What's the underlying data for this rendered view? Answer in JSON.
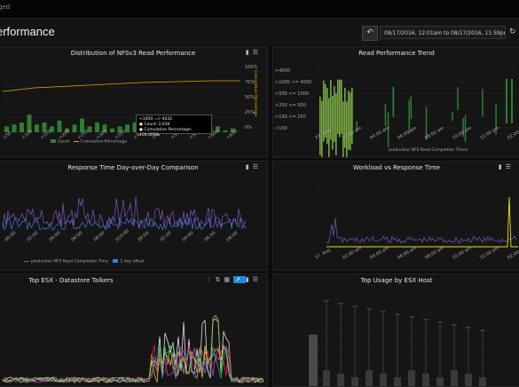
{
  "header": {
    "crumb": "ged",
    "title": "erformance",
    "back_icon": "undo-icon",
    "range": "08/17/2016, 12:01am to 08/17/2016, 11:59pm",
    "refresh_icon": "refresh-icon"
  },
  "panels": {
    "nfs": {
      "title": "Distribution of NFSv3 Read Performance",
      "tooltip": [
        "<1000 => 4032",
        "● Count: 2,634",
        "● Cumulative Percentage: 100.000%"
      ],
      "legend": [
        "Count",
        "Cumulative Percentage"
      ],
      "y_right": "Cumulative Percentage",
      "y_ticks": [
        "100%",
        "75%",
        "50%",
        "25%",
        "0%"
      ]
    },
    "trend": {
      "title": "Read Performance Trend",
      "y_ticks": [
        ">4000",
        ">1000 <= 4000",
        ">500 <= 1000",
        ">250 <= 500",
        ">150 <= 250",
        "<150"
      ],
      "x_ticks": [
        "17. Aug",
        "02:00 am",
        "04:00 am",
        "06:00 am",
        "08:00 am",
        "10:00 am",
        "12:00 pm",
        "02:00 pm"
      ],
      "legend": "production NFS Read Completion Times"
    },
    "rt": {
      "title": "Response Time Day-over-Day Comparison",
      "legend": [
        "production NFS Read Completion Time",
        "1 day offset"
      ]
    },
    "workload": {
      "title": "Workload vs Response Time",
      "x_ticks": [
        "17. Aug",
        "02:00 am",
        "04:00 am",
        "06:00 am",
        "08:00 am",
        "10:00 am",
        "12:00 pm",
        "02:00 pm"
      ]
    },
    "esx": {
      "title": "Top ESX - Datastore Talkers"
    },
    "usage": {
      "title": "Top Usage by ESX Host"
    }
  },
  "colors": {
    "accent": "#1e88e5",
    "green": "#2e7d32",
    "lime": "#8bc34a",
    "gold": "#e0a800",
    "purple": "#7e57c2",
    "blue": "#3f7fd9",
    "yellow": "#e6e600"
  }
}
